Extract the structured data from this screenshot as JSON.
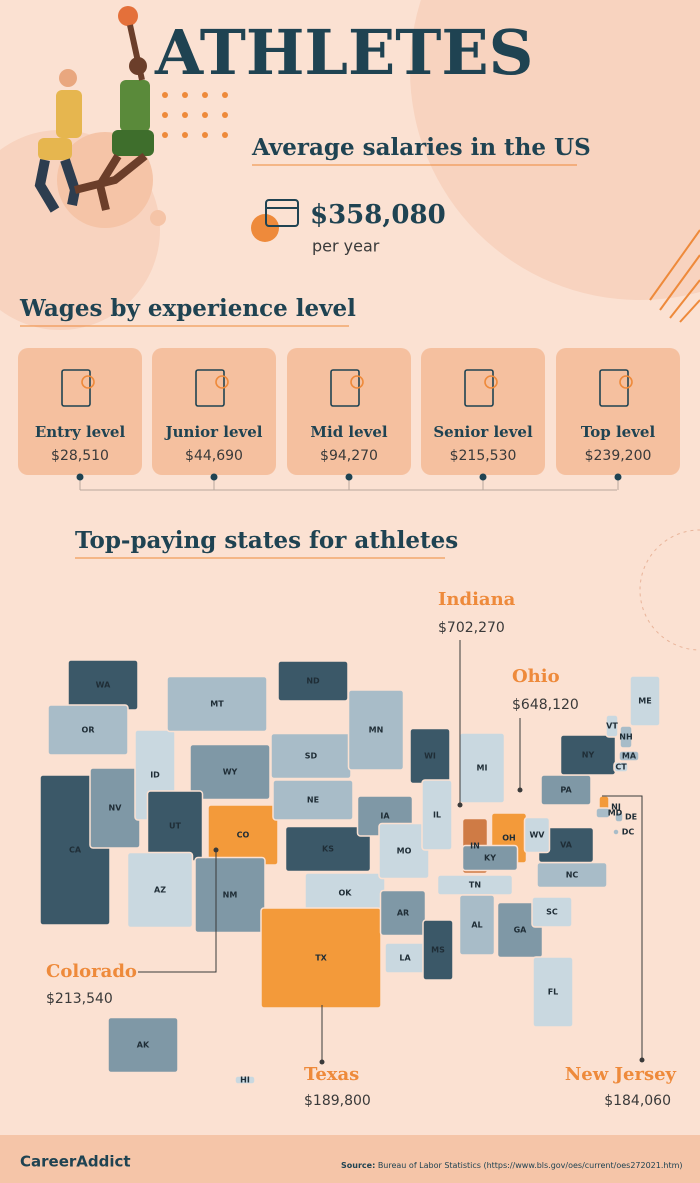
{
  "header": {
    "title": "ATHLETES",
    "subtitle": "Average salaries in the US",
    "salary": "$358,080",
    "period": "per year"
  },
  "experience": {
    "title": "Wages by experience level",
    "levels": [
      {
        "label": "Entry level",
        "wage": "$28,510"
      },
      {
        "label": "Junior level",
        "wage": "$44,690"
      },
      {
        "label": "Mid level",
        "wage": "$94,270"
      },
      {
        "label": "Senior level",
        "wage": "$215,530"
      },
      {
        "label": "Top level",
        "wage": "$239,200"
      }
    ]
  },
  "states_section": {
    "title": "Top-paying states for athletes",
    "top_states": [
      {
        "name": "Indiana",
        "wage": "$702,270"
      },
      {
        "name": "Ohio",
        "wage": "$648,120"
      },
      {
        "name": "Colorado",
        "wage": "$213,540"
      },
      {
        "name": "Texas",
        "wage": "$189,800"
      },
      {
        "name": "New Jersey",
        "wage": "$184,060"
      }
    ],
    "map_labels": [
      "WA",
      "OR",
      "CA",
      "NV",
      "ID",
      "MT",
      "WY",
      "UT",
      "CO",
      "AZ",
      "NM",
      "ND",
      "SD",
      "NE",
      "KS",
      "OK",
      "TX",
      "MN",
      "IA",
      "MO",
      "AR",
      "LA",
      "WI",
      "IL",
      "MI",
      "IN",
      "OH",
      "KY",
      "TN",
      "MS",
      "AL",
      "GA",
      "FL",
      "SC",
      "NC",
      "VA",
      "WV",
      "PA",
      "NY",
      "VT",
      "NH",
      "ME",
      "MA",
      "CT",
      "NJ",
      "DE",
      "MD",
      "DC",
      "AK",
      "HI"
    ]
  },
  "footer": {
    "brand": "CareerAddict",
    "source_label": "Source:",
    "source": "Bureau of Labor Statistics (https://www.bls.gov/oes/current/oes272021.htm)"
  }
}
